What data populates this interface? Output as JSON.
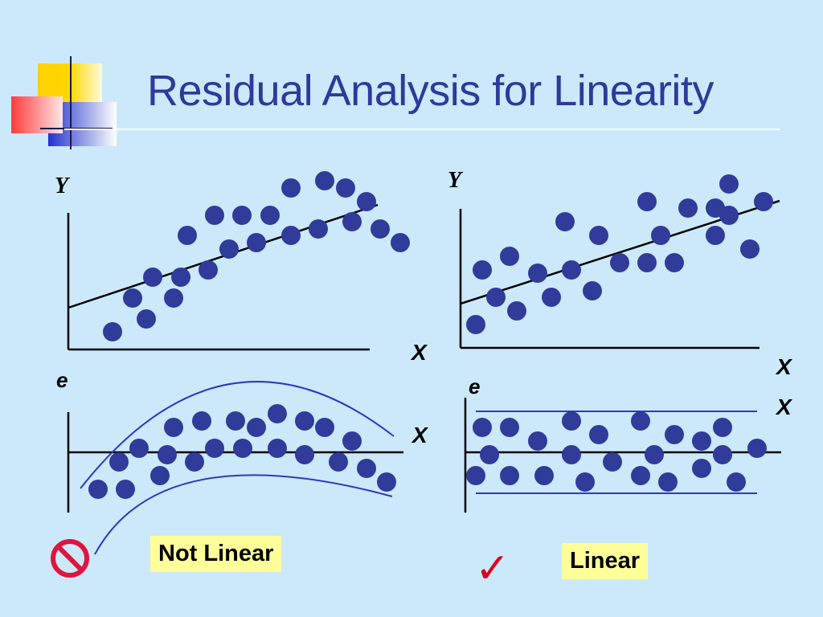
{
  "title": "Residual Analysis for Linearity",
  "colors": {
    "background": "#cce9fb",
    "title": "#2e3a9a",
    "dot": "#303b9a",
    "band": "#2f37c0",
    "label_bg": "#ffff99",
    "prohibit": "#e0143c",
    "check": "#e00020"
  },
  "left_panel": {
    "scatter": {
      "y_label": "Y",
      "x_label": "X",
      "points": [
        [
          140,
          413
        ],
        [
          182,
          397
        ],
        [
          165,
          371
        ],
        [
          216,
          371
        ],
        [
          190,
          345
        ],
        [
          225,
          345
        ],
        [
          259,
          336
        ],
        [
          233,
          293
        ],
        [
          285,
          310
        ],
        [
          319,
          302
        ],
        [
          267,
          268
        ],
        [
          301,
          268
        ],
        [
          336,
          268
        ],
        [
          362,
          293
        ],
        [
          396,
          285
        ],
        [
          438,
          276
        ],
        [
          362,
          234
        ],
        [
          404,
          225
        ],
        [
          430,
          234
        ],
        [
          456,
          251
        ],
        [
          473,
          285
        ],
        [
          498,
          302
        ]
      ]
    },
    "residual": {
      "e_label": "e",
      "x_label": "X",
      "points": [
        [
          122,
          609
        ],
        [
          156,
          609
        ],
        [
          148,
          575
        ],
        [
          173,
          558
        ],
        [
          199,
          592
        ],
        [
          208,
          566
        ],
        [
          242,
          575
        ],
        [
          216,
          532
        ],
        [
          251,
          524
        ],
        [
          267,
          558
        ],
        [
          293,
          524
        ],
        [
          302,
          558
        ],
        [
          319,
          532
        ],
        [
          345,
          515
        ],
        [
          345,
          558
        ],
        [
          379,
          524
        ],
        [
          379,
          566
        ],
        [
          404,
          532
        ],
        [
          421,
          575
        ],
        [
          438,
          549
        ],
        [
          456,
          583
        ],
        [
          481,
          600
        ]
      ]
    },
    "verdict": "Not Linear",
    "verdict_icon": "prohibit-icon"
  },
  "right_panel": {
    "scatter": {
      "y_label": "Y",
      "x_label": "X",
      "points": [
        [
          592,
          404
        ],
        [
          600,
          336
        ],
        [
          617,
          370
        ],
        [
          634,
          319
        ],
        [
          643,
          387
        ],
        [
          669,
          340
        ],
        [
          686,
          370
        ],
        [
          703,
          276
        ],
        [
          711,
          336
        ],
        [
          737,
          362
        ],
        [
          745,
          293
        ],
        [
          771,
          327
        ],
        [
          805,
          251
        ],
        [
          805,
          327
        ],
        [
          822,
          293
        ],
        [
          839,
          327
        ],
        [
          856,
          259
        ],
        [
          890,
          259
        ],
        [
          890,
          293
        ],
        [
          907,
          229
        ],
        [
          907,
          268
        ],
        [
          933,
          310
        ],
        [
          950,
          251
        ]
      ]
    },
    "residual": {
      "e_label": "e",
      "x_label": "X",
      "points": [
        [
          592,
          592
        ],
        [
          600,
          532
        ],
        [
          609,
          566
        ],
        [
          634,
          532
        ],
        [
          634,
          592
        ],
        [
          669,
          549
        ],
        [
          677,
          592
        ],
        [
          711,
          524
        ],
        [
          711,
          566
        ],
        [
          728,
          600
        ],
        [
          745,
          541
        ],
        [
          762,
          575
        ],
        [
          797,
          524
        ],
        [
          797,
          592
        ],
        [
          814,
          566
        ],
        [
          831,
          600
        ],
        [
          839,
          541
        ],
        [
          873,
          549
        ],
        [
          873,
          583
        ],
        [
          899,
          532
        ],
        [
          899,
          566
        ],
        [
          916,
          600
        ],
        [
          942,
          558
        ]
      ]
    },
    "verdict": "Linear",
    "verdict_icon": "check-icon"
  }
}
